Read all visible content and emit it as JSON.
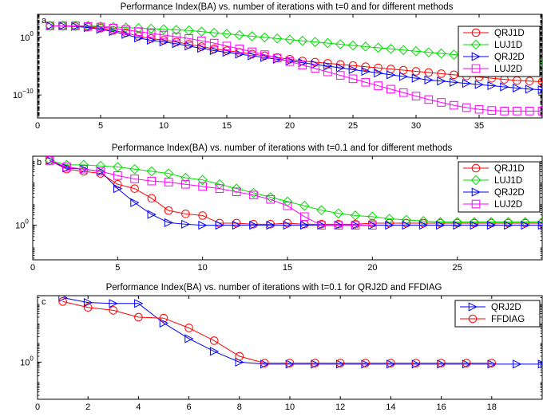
{
  "chart_data": [
    {
      "type": "line",
      "title": "Performance Index(BA) vs. number of iterations with t=0 and for different methods",
      "panel_label": "a",
      "xlabel": "",
      "ylabel": "",
      "xlim": [
        0,
        40
      ],
      "ylim_exp": [
        -14,
        4
      ],
      "y_scale": "log",
      "x_ticks": [
        0,
        5,
        10,
        15,
        20,
        25,
        30,
        35
      ],
      "y_ticks": [
        {
          "exp": 0,
          "label": "10",
          "sup": "0"
        },
        {
          "exp": -10,
          "label": "10",
          "sup": "−10"
        }
      ],
      "legend_position": "top-right",
      "series": [
        {
          "name": "QRJ1D",
          "color": "#ff0000",
          "marker": "circle",
          "x": [
            1,
            2,
            3,
            4,
            5,
            6,
            7,
            8,
            9,
            10,
            11,
            12,
            13,
            14,
            15,
            16,
            17,
            18,
            19,
            20,
            21,
            22,
            23,
            24,
            25,
            26,
            27,
            28,
            29,
            30,
            31,
            32,
            33,
            34,
            35,
            36,
            37,
            38,
            39,
            40
          ],
          "y_exp": [
            2,
            2,
            1.9,
            1.8,
            1.6,
            1.2,
            0.8,
            0.2,
            -0.2,
            -0.5,
            -0.8,
            -1.2,
            -1.6,
            -2,
            -2.3,
            -2.6,
            -2.9,
            -3.2,
            -3.5,
            -3.8,
            -4.1,
            -4.3,
            -4.5,
            -4.7,
            -4.9,
            -5.1,
            -5.3,
            -5.5,
            -5.7,
            -5.9,
            -6.1,
            -6.3,
            -6.5,
            -6.7,
            -6.9,
            -7.1,
            -7.3,
            -7.5,
            -7.6,
            -7.7
          ]
        },
        {
          "name": "LUJ1D",
          "color": "#00dd00",
          "marker": "diamond",
          "x": [
            1,
            2,
            3,
            4,
            5,
            6,
            7,
            8,
            9,
            10,
            11,
            12,
            13,
            14,
            15,
            16,
            17,
            18,
            19,
            20,
            21,
            22,
            23,
            24,
            25,
            26,
            27,
            28,
            29,
            30,
            31,
            32,
            33,
            34,
            35,
            36,
            37,
            38,
            39,
            40
          ],
          "y_exp": [
            2,
            2,
            2,
            2,
            1.9,
            1.8,
            1.7,
            1.6,
            1.5,
            1.4,
            1.3,
            1.2,
            1,
            0.8,
            0.6,
            0.4,
            0.2,
            0,
            -0.2,
            -0.4,
            -0.6,
            -0.8,
            -1,
            -1.2,
            -1.4,
            -1.6,
            -1.8,
            -2,
            -2.2,
            -2.4,
            -2.6,
            -2.8,
            -3,
            -3.2,
            -3.4,
            -3.6,
            -3.8,
            -4,
            -4.2,
            -4.4
          ]
        },
        {
          "name": "QRJ2D",
          "color": "#0000ff",
          "marker": "triangle-right",
          "x": [
            1,
            2,
            3,
            4,
            5,
            6,
            7,
            8,
            9,
            10,
            11,
            12,
            13,
            14,
            15,
            16,
            17,
            18,
            19,
            20,
            21,
            22,
            23,
            24,
            25,
            26,
            27,
            28,
            29,
            30,
            31,
            32,
            33,
            34,
            35,
            36,
            37,
            38,
            39,
            40
          ],
          "y_exp": [
            2,
            2,
            1.9,
            1.7,
            1.4,
            1,
            0.5,
            -0.1,
            -0.5,
            -0.8,
            -1.1,
            -1.5,
            -1.9,
            -2.3,
            -2.6,
            -2.9,
            -3.2,
            -3.5,
            -3.8,
            -4.1,
            -4.4,
            -4.7,
            -5,
            -5.3,
            -5.6,
            -5.9,
            -6.2,
            -6.5,
            -6.8,
            -7.1,
            -7.4,
            -7.6,
            -7.8,
            -8,
            -8.2,
            -8.4,
            -8.6,
            -8.8,
            -9,
            -9.1
          ]
        },
        {
          "name": "LUJ2D",
          "color": "#ff00ff",
          "marker": "square",
          "x": [
            1,
            2,
            3,
            4,
            5,
            6,
            7,
            8,
            9,
            10,
            11,
            12,
            13,
            14,
            15,
            16,
            17,
            18,
            19,
            20,
            21,
            22,
            23,
            24,
            25,
            26,
            27,
            28,
            29,
            30,
            31,
            32,
            33,
            34,
            35,
            36,
            37,
            38,
            39,
            40
          ],
          "y_exp": [
            2,
            2,
            2,
            1.9,
            1.8,
            1.6,
            1.3,
            1,
            0.7,
            0.4,
            0.1,
            -0.2,
            -0.6,
            -1,
            -1.5,
            -2,
            -2.5,
            -3,
            -3.6,
            -4.2,
            -4.8,
            -5.4,
            -6,
            -6.6,
            -7.2,
            -7.8,
            -8.4,
            -9,
            -9.6,
            -10.2,
            -10.8,
            -11.3,
            -11.8,
            -12.2,
            -12.5,
            -12.7,
            -12.8,
            -12.8,
            -12.8,
            -12.8
          ]
        }
      ]
    },
    {
      "type": "line",
      "title": "Performance Index(BA) vs. number of iterations with t=0.1 and for different methods",
      "panel_label": "b",
      "xlabel": "",
      "ylabel": "",
      "xlim": [
        0,
        30
      ],
      "ylim_exp": [
        -1.6,
        3.2
      ],
      "y_scale": "log",
      "x_ticks": [
        0,
        5,
        10,
        15,
        20,
        25
      ],
      "y_ticks": [
        {
          "exp": 0,
          "label": "10",
          "sup": "0"
        }
      ],
      "legend_position": "top-right",
      "series": [
        {
          "name": "QRJ1D",
          "color": "#ff0000",
          "marker": "circle",
          "x": [
            1,
            2,
            3,
            4,
            5,
            6,
            7,
            8,
            9,
            10,
            11,
            12,
            13,
            14,
            15,
            16,
            17,
            18,
            19,
            20,
            21,
            22,
            23,
            24,
            25,
            26,
            27,
            28,
            29,
            30
          ],
          "y_exp": [
            3,
            2.6,
            2.5,
            2.4,
            1.9,
            1.7,
            1.25,
            0.68,
            0.53,
            0.45,
            0.1,
            0.1,
            0.05,
            0.05,
            0.1,
            0.05,
            0.05,
            0.05,
            0.05,
            0.1,
            0.1,
            0.1,
            0.1,
            0.1,
            0.1,
            0.1,
            0.1,
            0.1,
            0.1,
            0.1
          ]
        },
        {
          "name": "LUJ1D",
          "color": "#00dd00",
          "marker": "diamond",
          "x": [
            1,
            2,
            3,
            4,
            5,
            6,
            7,
            8,
            9,
            10,
            11,
            12,
            13,
            14,
            15,
            16,
            17,
            18,
            19,
            20,
            21,
            22,
            23,
            24,
            25,
            26,
            27,
            28,
            29,
            30
          ],
          "y_exp": [
            3,
            2.8,
            2.8,
            2.75,
            2.7,
            2.6,
            2.5,
            2.4,
            2.2,
            2.1,
            1.9,
            1.7,
            1.5,
            1.3,
            1.1,
            0.9,
            0.7,
            0.55,
            0.45,
            0.4,
            0.3,
            0.25,
            0.2,
            0.15,
            0.15,
            0.15,
            0.15,
            0.15,
            0.15,
            0.15
          ]
        },
        {
          "name": "QRJ2D",
          "color": "#0000ff",
          "marker": "triangle-right",
          "x": [
            1,
            2,
            3,
            4,
            5,
            6,
            7,
            8,
            9,
            10,
            11,
            12,
            13,
            14,
            15,
            16,
            17,
            18,
            19,
            20,
            21,
            22,
            23,
            24,
            25,
            26,
            27,
            28,
            29,
            30
          ],
          "y_exp": [
            3,
            2.65,
            2.6,
            2.5,
            1.7,
            1.05,
            0.5,
            0.12,
            0.05,
            0,
            0,
            0,
            0,
            0,
            0,
            0,
            0,
            0,
            0,
            0,
            0,
            0,
            0,
            0,
            0,
            0,
            0,
            0,
            0,
            0
          ]
        },
        {
          "name": "LUJ2D",
          "color": "#ff00ff",
          "marker": "square",
          "x": [
            1,
            2,
            3,
            4,
            5,
            6,
            7,
            8,
            9,
            10,
            11,
            12,
            13,
            14,
            15,
            16,
            17,
            18,
            19,
            20
          ],
          "y_exp": [
            3,
            2.7,
            2.6,
            2.5,
            2.3,
            2.15,
            2.05,
            2,
            1.9,
            1.8,
            1.7,
            1.55,
            1.4,
            1.2,
            0.9,
            0.4,
            0,
            0,
            0,
            0
          ]
        }
      ]
    },
    {
      "type": "line",
      "title": "Performance Index(BA) vs. number of iterations with t=0.1 for QRJ2D and FFDIAG",
      "panel_label": "c",
      "xlabel": "",
      "ylabel": "",
      "xlim": [
        0,
        20
      ],
      "ylim_exp": [
        -1.9,
        3.4
      ],
      "y_scale": "log",
      "x_ticks": [
        0,
        2,
        4,
        6,
        8,
        10,
        12,
        14,
        16,
        18
      ],
      "y_ticks": [
        {
          "exp": 0,
          "label": "10",
          "sup": "0"
        }
      ],
      "legend_position": "top-right",
      "series": [
        {
          "name": "QRJ2D",
          "color": "#0000ff",
          "marker": "triangle-right",
          "x": [
            1,
            2,
            3,
            4,
            5,
            6,
            7,
            8,
            9,
            10,
            11,
            12,
            13,
            14,
            15,
            16,
            17,
            18,
            19,
            20
          ],
          "y_exp": [
            3.3,
            3.05,
            3,
            3,
            2,
            1.2,
            0.55,
            0,
            -0.1,
            -0.1,
            -0.1,
            -0.1,
            -0.1,
            -0.1,
            -0.1,
            -0.1,
            -0.1,
            -0.1,
            -0.1,
            -0.1
          ]
        },
        {
          "name": "FFDIAG",
          "color": "#ff0000",
          "marker": "circle",
          "x": [
            1,
            2,
            3,
            4,
            5,
            6,
            7,
            8,
            9,
            10,
            11,
            12,
            13,
            14,
            15,
            16,
            17,
            18
          ],
          "y_exp": [
            3.1,
            2.8,
            2.65,
            2.3,
            2.25,
            1.75,
            1.1,
            0.3,
            -0.05,
            -0.05,
            -0.05,
            -0.05,
            -0.05,
            -0.05,
            -0.05,
            -0.05,
            -0.05,
            -0.05
          ]
        }
      ]
    }
  ]
}
